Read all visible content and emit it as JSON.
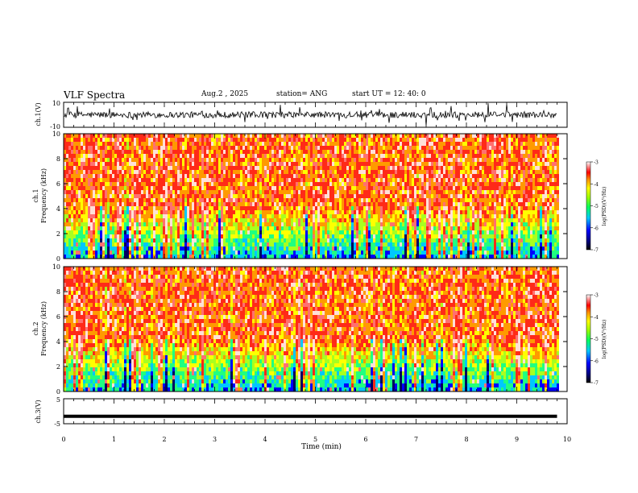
{
  "header": {
    "title": "VLF Spectra",
    "date": "Aug.2 , 2025",
    "station": "station= ANG",
    "start": "start UT = 12: 40: 0"
  },
  "chart_data": [
    {
      "type": "line",
      "name": "ch1-waveform",
      "ylabel": "ch.1(V)",
      "ylim": [
        -10,
        10
      ],
      "yticks": [
        "10",
        "-10"
      ],
      "trace": "dense noisy voltage signal"
    },
    {
      "type": "heatmap",
      "name": "ch1-spectrogram",
      "ylabel_top": "ch.1",
      "ylabel": "Frequency (kHz)",
      "ylim": [
        0,
        10
      ],
      "yticks": [
        "0",
        "2",
        "4",
        "6",
        "8",
        "10"
      ],
      "colorbar": {
        "label": "log(PSD)(V²/Hz)",
        "range": [
          -7,
          -3
        ],
        "ticks": [
          "-3",
          "-4",
          "-5",
          "-6",
          "-7"
        ]
      }
    },
    {
      "type": "heatmap",
      "name": "ch2-spectrogram",
      "ylabel_top": "ch.2",
      "ylabel": "Frequency (kHz)",
      "ylim": [
        0,
        10
      ],
      "yticks": [
        "0",
        "2",
        "4",
        "6",
        "8",
        "10"
      ],
      "colorbar": {
        "label": "log(PSD)(V²/Hz)",
        "range": [
          -7,
          -3
        ],
        "ticks": [
          "-3",
          "-4",
          "-5",
          "-6",
          "-7"
        ]
      }
    },
    {
      "type": "line",
      "name": "ch3-level",
      "ylabel": "ch.3(V)",
      "ylim": [
        -5,
        5
      ],
      "yticks": [
        "5",
        "-5"
      ],
      "values": [
        -2,
        -2
      ]
    }
  ],
  "xaxis": {
    "label": "Time (min)",
    "xlim": [
      0,
      10
    ],
    "ticks": [
      "0",
      "1",
      "2",
      "3",
      "4",
      "5",
      "6",
      "7",
      "8",
      "9",
      "10"
    ],
    "data_end": 9.8
  },
  "colors": {
    "cmap": [
      "#000080",
      "#0000ff",
      "#00b0ff",
      "#00e8e8",
      "#40ff60",
      "#a8ff20",
      "#ffff00",
      "#ffa000",
      "#ff3020",
      "#ff2828",
      "#ffffff"
    ]
  }
}
